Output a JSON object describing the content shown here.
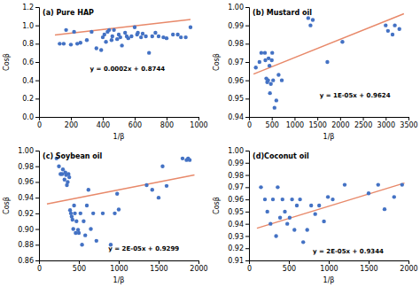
{
  "chart_data": [
    {
      "type": "scatter",
      "title": "(a) Pure HAP",
      "x_label": "1/β",
      "y_label": "Cosβ",
      "xlim": [
        0,
        1000
      ],
      "ylim": [
        0,
        1.2
      ],
      "xticks": [
        0,
        200,
        400,
        600,
        800,
        1000
      ],
      "yticks": [
        {
          "value": 0,
          "label": "0.0"
        },
        0.2,
        0.4,
        0.6,
        0.8,
        {
          "value": 1.0,
          "label": "1.0"
        },
        1.2
      ],
      "series": [
        {
          "type": "scatter",
          "color": "#4472C4",
          "x": [
            130,
            155,
            170,
            200,
            220,
            240,
            260,
            300,
            330,
            360,
            390,
            400,
            410,
            420,
            430,
            440,
            455,
            460,
            470,
            490,
            500,
            510,
            520,
            540,
            550,
            560,
            580,
            600,
            615,
            620,
            640,
            650,
            670,
            690,
            710,
            730,
            750,
            780,
            800,
            840,
            870,
            890,
            920,
            950
          ],
          "values": [
            0.8,
            0.8,
            0.95,
            0.79,
            0.93,
            0.8,
            0.81,
            0.84,
            0.93,
            0.75,
            0.73,
            0.87,
            0.9,
            0.82,
            0.93,
            0.95,
            0.84,
            0.88,
            0.95,
            0.85,
            0.9,
            0.87,
            0.78,
            0.92,
            0.88,
            0.86,
            0.88,
            0.98,
            0.9,
            0.92,
            0.87,
            0.91,
            0.88,
            0.7,
            0.88,
            0.92,
            0.88,
            0.87,
            0.86,
            0.9,
            0.9,
            0.87,
            0.87,
            0.98
          ]
        },
        {
          "type": "line",
          "color": "#E8896A",
          "x": [
            100,
            950
          ],
          "values": [
            0.8944,
            1.0644
          ]
        }
      ],
      "annotations": [
        {
          "text": "y = 0.0002x + 0.8744",
          "x": 320,
          "y": 0.5
        }
      ]
    },
    {
      "type": "scatter",
      "title": "(b) Mustard oil",
      "x_label": "1/β",
      "y_label": "Cosβ",
      "xlim": [
        0,
        3500
      ],
      "ylim": [
        0.94,
        1.0
      ],
      "xticks": [
        0,
        500,
        1000,
        1500,
        2000,
        2500,
        3000,
        3500
      ],
      "yticks": [
        0.94,
        0.95,
        0.96,
        0.97,
        0.98,
        0.99,
        {
          "value": 1.0,
          "label": "1.00"
        }
      ],
      "series": [
        {
          "type": "scatter",
          "color": "#4472C4",
          "x": [
            150,
            230,
            270,
            350,
            360,
            380,
            400,
            420,
            430,
            450,
            460,
            480,
            500,
            510,
            530,
            560,
            600,
            650,
            720,
            1300,
            1350,
            1400,
            1720,
            2050,
            3000,
            3050,
            3150,
            3200,
            3300
          ],
          "values": [
            0.967,
            0.97,
            0.975,
            0.975,
            0.971,
            0.961,
            0.959,
            0.96,
            0.972,
            0.968,
            0.953,
            0.958,
            0.971,
            0.975,
            0.96,
            0.945,
            0.949,
            0.963,
            0.96,
            0.994,
            0.99,
            0.993,
            0.97,
            0.981,
            0.99,
            0.987,
            0.985,
            0.99,
            0.988
          ]
        },
        {
          "type": "line",
          "color": "#E8896A",
          "x": [
            100,
            3400
          ],
          "values": [
            0.9634,
            0.9964
          ]
        }
      ],
      "annotations": [
        {
          "text": "y = 1E-05x + 0.9624",
          "x": 1550,
          "y": 0.9505
        }
      ]
    },
    {
      "type": "scatter",
      "title": "(c) Soybean oil",
      "x_label": "1/β",
      "y_label": "Cosβ",
      "xlim": [
        0,
        2000
      ],
      "ylim": [
        0.86,
        1.0
      ],
      "xticks": [
        0,
        500,
        1000,
        1500,
        2000
      ],
      "yticks": [
        0.86,
        0.88,
        {
          "value": 0.9,
          "label": "0.90"
        },
        0.92,
        0.94,
        0.96,
        0.98,
        {
          "value": 1.0,
          "label": "1.00"
        }
      ],
      "series": [
        {
          "type": "scatter",
          "color": "#4472C4",
          "x": [
            220,
            250,
            270,
            290,
            300,
            320,
            330,
            340,
            350,
            360,
            370,
            380,
            390,
            400,
            410,
            420,
            430,
            440,
            450,
            460,
            470,
            490,
            500,
            520,
            540,
            560,
            580,
            600,
            620,
            650,
            680,
            720,
            800,
            900,
            950,
            980,
            1000,
            1350,
            1420,
            1500,
            1550,
            1600,
            1800,
            1850,
            1870,
            1890
          ],
          "values": [
            0.99,
            0.98,
            0.97,
            0.97,
            0.976,
            0.963,
            0.972,
            0.969,
            0.956,
            0.96,
            0.97,
            0.966,
            0.924,
            0.92,
            0.916,
            0.912,
            0.9,
            0.93,
            0.92,
            0.895,
            0.91,
            0.899,
            0.895,
            0.92,
            0.88,
            0.91,
            0.892,
            0.93,
            0.95,
            0.9,
            0.92,
            0.885,
            0.92,
            0.88,
            0.92,
            0.945,
            0.925,
            0.956,
            0.95,
            0.94,
            0.98,
            0.955,
            0.99,
            0.988,
            0.99,
            0.988
          ]
        },
        {
          "type": "line",
          "color": "#E8896A",
          "x": [
            100,
            1950
          ],
          "values": [
            0.9319,
            0.9689
          ]
        }
      ],
      "annotations": [
        {
          "text": "y = 2E-05x + 0.9299",
          "x": 870,
          "y": 0.872
        }
      ]
    },
    {
      "type": "scatter",
      "title": "(d)Coconut oil",
      "x_label": "1/β",
      "y_label": "Cosβ",
      "xlim": [
        0,
        2000
      ],
      "ylim": [
        0.91,
        1.0
      ],
      "xticks": [
        0,
        500,
        1000,
        1500,
        2000
      ],
      "yticks": [
        0.91,
        0.92,
        0.93,
        0.94,
        0.95,
        0.96,
        0.97,
        0.98,
        0.99,
        {
          "value": 1.0,
          "label": "1.00"
        }
      ],
      "series": [
        {
          "type": "scatter",
          "color": "#4472C4",
          "x": [
            150,
            200,
            230,
            270,
            300,
            340,
            360,
            390,
            420,
            450,
            480,
            510,
            540,
            570,
            600,
            640,
            680,
            730,
            780,
            830,
            880,
            940,
            990,
            1050,
            1200,
            1500,
            1620,
            1700,
            1820,
            1920
          ],
          "values": [
            0.97,
            0.96,
            0.95,
            0.94,
            0.96,
            0.93,
            0.97,
            0.945,
            0.96,
            0.95,
            0.94,
            0.945,
            0.96,
            0.935,
            0.955,
            0.96,
            0.925,
            0.935,
            0.955,
            0.948,
            0.955,
            0.942,
            0.962,
            0.96,
            0.972,
            0.965,
            0.972,
            0.952,
            0.962,
            0.972
          ]
        },
        {
          "type": "line",
          "color": "#E8896A",
          "x": [
            100,
            1950
          ],
          "values": [
            0.9364,
            0.9734
          ]
        }
      ],
      "annotations": [
        {
          "text": "y = 2E-05x + 0.9344",
          "x": 800,
          "y": 0.916
        }
      ]
    }
  ]
}
